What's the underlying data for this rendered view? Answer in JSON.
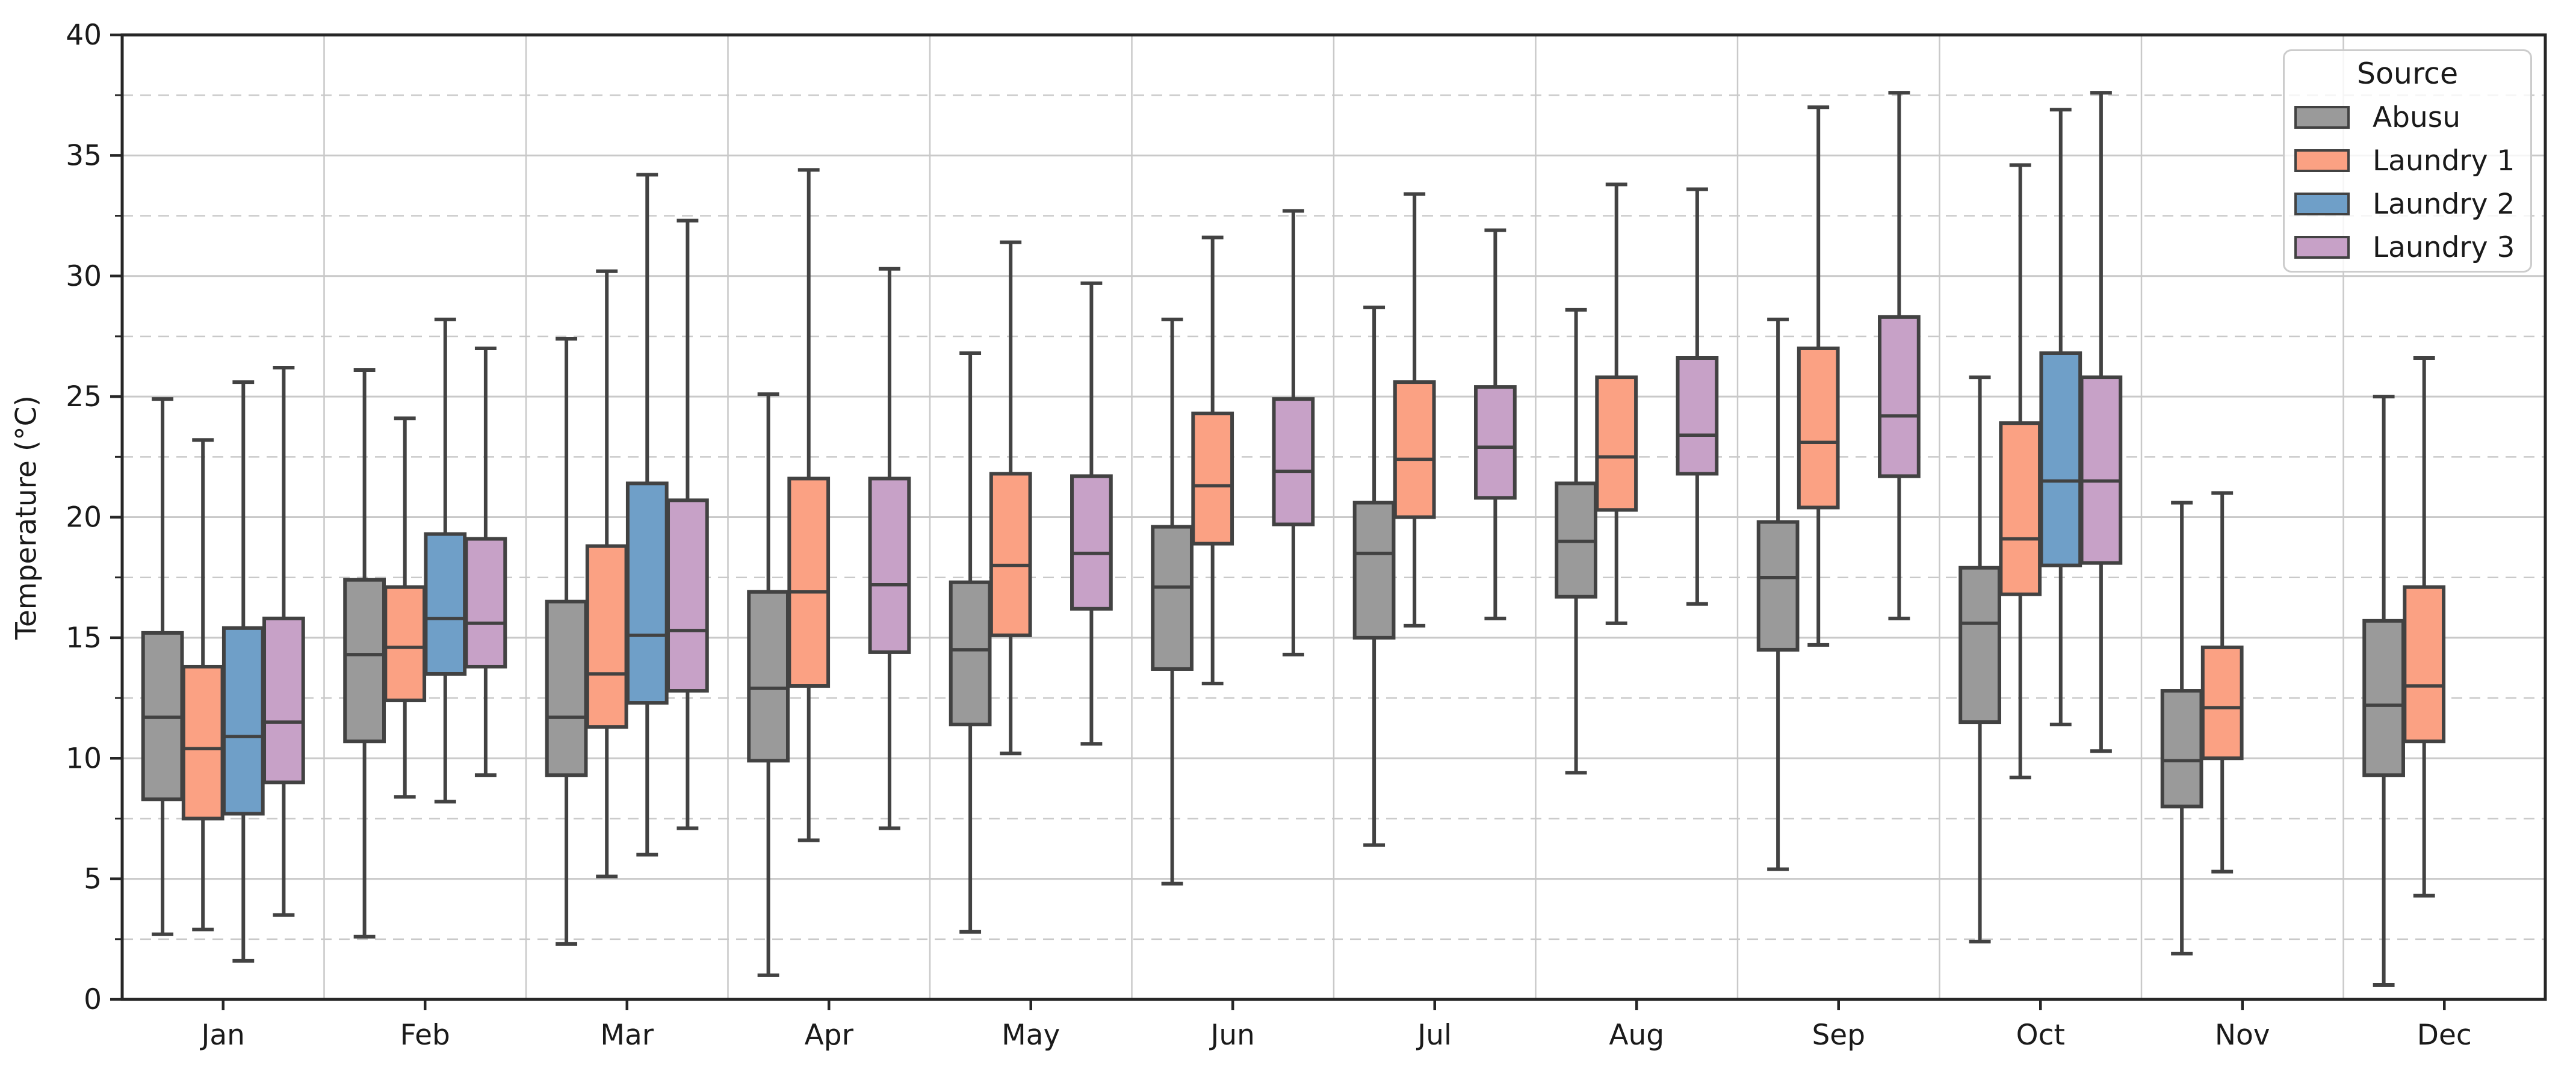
{
  "figure": {
    "ylabel": "Temperature (°C)"
  },
  "chart_data": {
    "type": "box",
    "title": "",
    "xlabel": "",
    "ylabel": "Temperature (°C)",
    "ylim": [
      0,
      40
    ],
    "yticks": [
      0,
      5,
      10,
      15,
      20,
      25,
      30,
      35,
      40
    ],
    "yticks_minor": [
      2.5,
      7.5,
      12.5,
      17.5,
      22.5,
      27.5,
      32.5,
      37.5
    ],
    "grid": {
      "major_horizontal": "solid",
      "minor_horizontal": "dashed",
      "vertical_at_category_boundaries": "solid"
    },
    "categories": [
      "Jan",
      "Feb",
      "Mar",
      "Apr",
      "May",
      "Jun",
      "Jul",
      "Aug",
      "Sep",
      "Oct",
      "Nov",
      "Dec"
    ],
    "legend": {
      "title": "Source",
      "position": "upper-right"
    },
    "box_format": [
      "whisker_low",
      "q1",
      "median",
      "q3",
      "whisker_high"
    ],
    "series": [
      {
        "name": "Abusu",
        "color": "#9a9a9a",
        "data": [
          [
            2.7,
            8.3,
            11.7,
            15.2,
            24.9
          ],
          [
            2.6,
            10.7,
            14.3,
            17.4,
            26.1
          ],
          [
            2.3,
            9.3,
            11.7,
            16.5,
            27.4
          ],
          [
            1.0,
            9.9,
            12.9,
            16.9,
            25.1
          ],
          [
            2.8,
            11.4,
            14.5,
            17.3,
            26.8
          ],
          [
            4.8,
            13.7,
            17.1,
            19.6,
            28.2
          ],
          [
            6.4,
            15.0,
            18.5,
            20.6,
            28.7
          ],
          [
            9.4,
            16.7,
            19.0,
            21.4,
            28.6
          ],
          [
            5.4,
            14.5,
            17.5,
            19.8,
            28.2
          ],
          [
            2.4,
            11.5,
            15.6,
            17.9,
            25.8
          ],
          [
            1.9,
            8.0,
            9.9,
            12.8,
            20.6
          ],
          [
            0.6,
            9.3,
            12.2,
            15.7,
            25.0
          ]
        ]
      },
      {
        "name": "Laundry 1",
        "color": "#fba183",
        "data": [
          [
            2.9,
            7.5,
            10.4,
            13.8,
            23.2
          ],
          [
            8.4,
            12.4,
            14.6,
            17.1,
            24.1
          ],
          [
            5.1,
            11.3,
            13.5,
            18.8,
            30.2
          ],
          [
            6.6,
            13.0,
            16.9,
            21.6,
            34.4
          ],
          [
            10.2,
            15.1,
            18.0,
            21.8,
            31.4
          ],
          [
            13.1,
            18.9,
            21.3,
            24.3,
            31.6
          ],
          [
            15.5,
            20.0,
            22.4,
            25.6,
            33.4
          ],
          [
            15.6,
            20.3,
            22.5,
            25.8,
            33.8
          ],
          [
            14.7,
            20.4,
            23.1,
            27.0,
            37.0
          ],
          [
            9.2,
            16.8,
            19.1,
            23.9,
            34.6
          ],
          [
            5.3,
            10.0,
            12.1,
            14.6,
            21.0
          ],
          [
            4.3,
            10.7,
            13.0,
            17.1,
            26.6
          ]
        ]
      },
      {
        "name": "Laundry 2",
        "color": "#6f9fc8",
        "data": [
          [
            1.6,
            7.7,
            10.9,
            15.4,
            25.6
          ],
          [
            8.2,
            13.5,
            15.8,
            19.3,
            28.2
          ],
          [
            6.0,
            12.3,
            15.1,
            21.4,
            34.2
          ],
          null,
          null,
          null,
          null,
          null,
          null,
          [
            11.4,
            18.0,
            21.5,
            26.8,
            36.9
          ],
          null,
          null
        ]
      },
      {
        "name": "Laundry 3",
        "color": "#c7a1c7",
        "data": [
          [
            3.5,
            9.0,
            11.5,
            15.8,
            26.2
          ],
          [
            9.3,
            13.8,
            15.6,
            19.1,
            27.0
          ],
          [
            7.1,
            12.8,
            15.3,
            20.7,
            32.3
          ],
          [
            7.1,
            14.4,
            17.2,
            21.6,
            30.3
          ],
          [
            10.6,
            16.2,
            18.5,
            21.7,
            29.7
          ],
          [
            14.3,
            19.7,
            21.9,
            24.9,
            32.7
          ],
          [
            15.8,
            20.8,
            22.9,
            25.4,
            31.9
          ],
          [
            16.4,
            21.8,
            23.4,
            26.6,
            33.6
          ],
          [
            15.8,
            21.7,
            24.2,
            28.3,
            37.6
          ],
          [
            10.3,
            18.1,
            21.5,
            25.8,
            37.6
          ],
          null,
          null
        ]
      }
    ],
    "style": {
      "box_edge_color": "#424242",
      "grid_color": "#c9c9c9",
      "spine_color": "#262626",
      "text_color": "#1a1a1a",
      "background": "#ffffff"
    }
  }
}
